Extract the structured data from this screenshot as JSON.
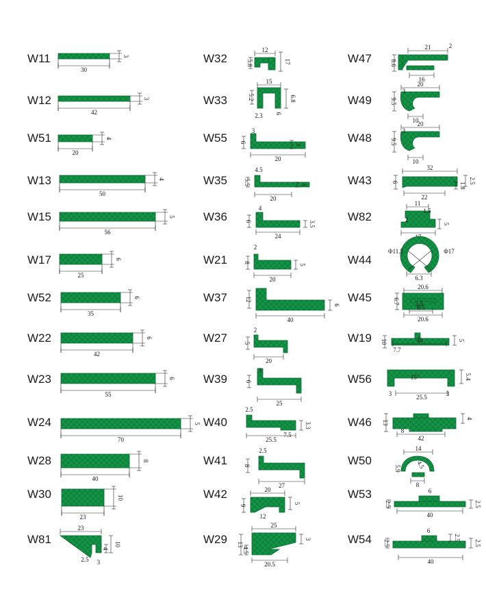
{
  "colors": {
    "profile": "#129346",
    "hatch": "#0b6a30",
    "ink": "#111111"
  },
  "profiles": [
    {
      "id": "W11",
      "dims": [
        "30",
        "3"
      ]
    },
    {
      "id": "W12",
      "dims": [
        "42",
        "3"
      ]
    },
    {
      "id": "W51",
      "dims": [
        "20",
        "4"
      ]
    },
    {
      "id": "W13",
      "dims": [
        "50",
        "4"
      ]
    },
    {
      "id": "W15",
      "dims": [
        "56",
        "5"
      ]
    },
    {
      "id": "W17",
      "dims": [
        "25",
        "6"
      ]
    },
    {
      "id": "W52",
      "dims": [
        "35",
        "6"
      ]
    },
    {
      "id": "W22",
      "dims": [
        "42",
        "6"
      ]
    },
    {
      "id": "W23",
      "dims": [
        "55",
        "6"
      ]
    },
    {
      "id": "W24",
      "dims": [
        "70",
        "5"
      ]
    },
    {
      "id": "W28",
      "dims": [
        "40",
        "8"
      ]
    },
    {
      "id": "W30",
      "dims": [
        "23",
        "10"
      ]
    },
    {
      "id": "W81",
      "dims": [
        "23",
        "10",
        "4",
        "2.5",
        "3"
      ]
    },
    {
      "id": "W32",
      "dims": [
        "12",
        "5.8",
        "17"
      ]
    },
    {
      "id": "W33",
      "dims": [
        "15",
        "5.2",
        "6.8",
        "2.3",
        "6"
      ]
    },
    {
      "id": "W55",
      "dims": [
        "3",
        "6",
        "20",
        "3"
      ]
    },
    {
      "id": "W35",
      "dims": [
        "4.5",
        "5.5",
        "20",
        "3"
      ]
    },
    {
      "id": "W36",
      "dims": [
        "4",
        "6",
        "24",
        "3.5"
      ]
    },
    {
      "id": "W21",
      "dims": [
        "2",
        "8",
        "20",
        "5"
      ]
    },
    {
      "id": "W37",
      "dims": [
        "12",
        "40",
        "6"
      ]
    },
    {
      "id": "W27",
      "dims": [
        "2",
        "5",
        "20"
      ]
    },
    {
      "id": "W39",
      "dims": [
        "3",
        "6",
        "25"
      ]
    },
    {
      "id": "W40",
      "dims": [
        "2.5",
        "25.5",
        "3.3",
        "7.5"
      ]
    },
    {
      "id": "W41",
      "dims": [
        "2.5",
        "8",
        "27"
      ]
    },
    {
      "id": "W42",
      "dims": [
        "20",
        "9",
        "12",
        "5"
      ]
    },
    {
      "id": "W29",
      "dims": [
        "25",
        "13",
        "4.5",
        "20.5",
        "3"
      ]
    },
    {
      "id": "W47",
      "dims": [
        "21",
        "2",
        "8.6",
        "16"
      ]
    },
    {
      "id": "W49",
      "dims": [
        "20",
        "3",
        "9.5",
        "10"
      ]
    },
    {
      "id": "W48",
      "dims": [
        "20",
        "3",
        "9.5",
        "10"
      ]
    },
    {
      "id": "W43",
      "dims": [
        "32",
        "6",
        "22",
        "1.8",
        "2.5"
      ]
    },
    {
      "id": "W82",
      "dims": [
        "11",
        "1.5",
        "2",
        "17",
        "5"
      ]
    },
    {
      "id": "W44",
      "dims": [
        "Φ11.5",
        "Φ17",
        "6.3"
      ]
    },
    {
      "id": "W45",
      "dims": [
        "20.6",
        "6.7",
        "8.5",
        "20.6",
        "2.5"
      ]
    },
    {
      "id": "W19",
      "dims": [
        "40",
        "10",
        "7.7",
        "5"
      ]
    },
    {
      "id": "W56",
      "dims": [
        "15°",
        "25.5",
        "3",
        "3",
        "5.4"
      ]
    },
    {
      "id": "W46",
      "dims": [
        "42",
        "13",
        "8",
        "4"
      ]
    },
    {
      "id": "W50",
      "dims": [
        "14",
        "5.9",
        "8",
        "4.5"
      ]
    },
    {
      "id": "W53",
      "dims": [
        "6",
        "40",
        "2.5",
        "2.5"
      ]
    },
    {
      "id": "W54",
      "dims": [
        "6",
        "2.5",
        "2.5",
        "2.5",
        "40"
      ]
    }
  ]
}
